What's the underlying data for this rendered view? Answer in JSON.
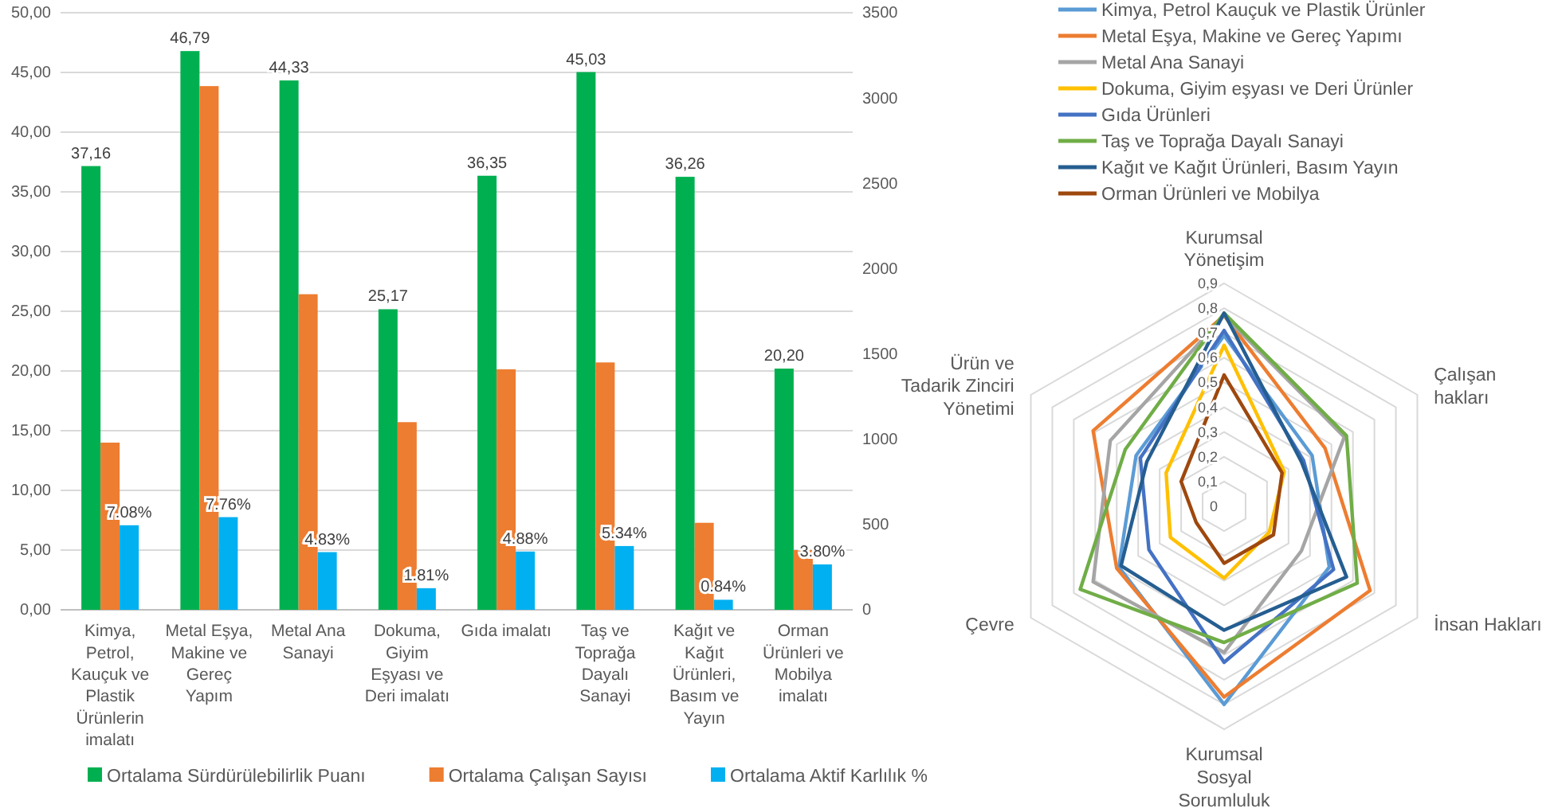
{
  "chart_data": [
    {
      "type": "bar",
      "categories": [
        "Kimya, Petrol, Kauçuk ve Plastik Ürünlerin imalatı",
        "Metal Eşya, Makine ve Gereç Yapım",
        "Metal Ana Sanayi",
        "Dokuma, Giyim Eşyası ve Deri imalatı",
        "Gıda imalatı",
        "Taş ve Toprağa Dayalı Sanayi",
        "Kağıt ve Kağıt Ürünleri, Basım ve Yayın",
        "Orman Ürünleri ve Mobilya imalatı"
      ],
      "series": [
        {
          "name": "Ortalama Sürdürülebilirlik Puanı",
          "color": "#00b050",
          "values": [
            37.16,
            46.79,
            44.33,
            25.17,
            36.35,
            45.03,
            36.26,
            20.2
          ],
          "value_labels": [
            "37,16",
            "46,79",
            "44,33",
            "25,17",
            "36,35",
            "45,03",
            "36,26",
            "20,20"
          ]
        },
        {
          "name": "Ortalama Çalışan Sayısı",
          "color": "#ed7d31",
          "axis": "y2",
          "values": [
            980,
            3070,
            1850,
            1100,
            1410,
            1450,
            510,
            350
          ]
        },
        {
          "name": "Ortalama Aktif Karlılık %",
          "color": "#00b0f0",
          "values": [
            7.08,
            7.76,
            4.83,
            1.81,
            4.88,
            5.34,
            0.84,
            3.8
          ],
          "value_labels": [
            "7.08%",
            "7.76%",
            "4.83%",
            "1.81%",
            "4.88%",
            "5.34%",
            "0.84%",
            "3.80%"
          ]
        }
      ],
      "ylim": [
        0,
        50
      ],
      "yticks": [
        {
          "value": 0,
          "label": "0,00"
        },
        {
          "value": 5,
          "label": "5,00"
        },
        {
          "value": 10,
          "label": "10,00"
        },
        {
          "value": 15,
          "label": "15,00"
        },
        {
          "value": 20,
          "label": "20,00"
        },
        {
          "value": 25,
          "label": "25,00"
        },
        {
          "value": 30,
          "label": "30,00"
        },
        {
          "value": 35,
          "label": "35,00"
        },
        {
          "value": 40,
          "label": "40,00"
        },
        {
          "value": 45,
          "label": "45,00"
        },
        {
          "value": 50,
          "label": "50,00"
        }
      ],
      "y2lim": [
        0,
        3500
      ],
      "y2ticks": [
        0,
        500,
        1000,
        1500,
        2000,
        2500,
        3000,
        3500
      ],
      "grid": "y",
      "legend": "bottom"
    },
    {
      "type": "radar",
      "categories": [
        "Kurumsal Yönetişim",
        "Çalışan hakları",
        "İnsan Hakları",
        "Kurumsal Sosyal Sorumluluk",
        "Çevre",
        "Ürün ve Tadarik Zinciri Yönetimi"
      ],
      "series": [
        {
          "name": "Kimya, Petrol Kauçuk ve Plastik Ürünler",
          "color": "#5b9bd5",
          "values": [
            0.69,
            0.41,
            0.49,
            0.8,
            0.49,
            0.41
          ]
        },
        {
          "name": "Metal Eşya, Makine ve Gereç Yapımı",
          "color": "#ed7d31",
          "values": [
            0.77,
            0.47,
            0.68,
            0.77,
            0.5,
            0.61
          ]
        },
        {
          "name": "Metal Ana Sanayi",
          "color": "#a5a5a5",
          "values": [
            0.77,
            0.56,
            0.36,
            0.59,
            0.61,
            0.53
          ]
        },
        {
          "name": "Dokuma, Giyim eşyası ve Deri Ürünler",
          "color": "#ffc000",
          "values": [
            0.65,
            0.28,
            0.21,
            0.29,
            0.25,
            0.27
          ]
        },
        {
          "name": "Gıda Ürünleri",
          "color": "#4472c4",
          "values": [
            0.71,
            0.37,
            0.51,
            0.63,
            0.35,
            0.39
          ]
        },
        {
          "name": "Taş ve Toprağa Dayalı Sanayi",
          "color": "#70ad47",
          "values": [
            0.78,
            0.57,
            0.62,
            0.55,
            0.67,
            0.46
          ]
        },
        {
          "name": "Kağıt ve Kağıt Ürünleri, Basım Yayın",
          "color": "#255e91",
          "values": [
            0.78,
            0.36,
            0.57,
            0.5,
            0.48,
            0.36
          ]
        },
        {
          "name": "Orman Ürünleri ve Mobilya",
          "color": "#9e480e",
          "values": [
            0.53,
            0.27,
            0.23,
            0.23,
            0.13,
            0.2
          ]
        }
      ],
      "ylim": [
        0,
        0.9
      ],
      "yticks": [
        {
          "value": 0,
          "label": "0"
        },
        {
          "value": 0.1,
          "label": "0,1"
        },
        {
          "value": 0.2,
          "label": "0,2"
        },
        {
          "value": 0.3,
          "label": "0,3"
        },
        {
          "value": 0.4,
          "label": "0,4"
        },
        {
          "value": 0.5,
          "label": "0,5"
        },
        {
          "value": 0.6,
          "label": "0,6"
        },
        {
          "value": 0.7,
          "label": "0,7"
        },
        {
          "value": 0.8,
          "label": "0,8"
        },
        {
          "value": 0.9,
          "label": "0,9"
        }
      ],
      "legend": "top"
    }
  ]
}
